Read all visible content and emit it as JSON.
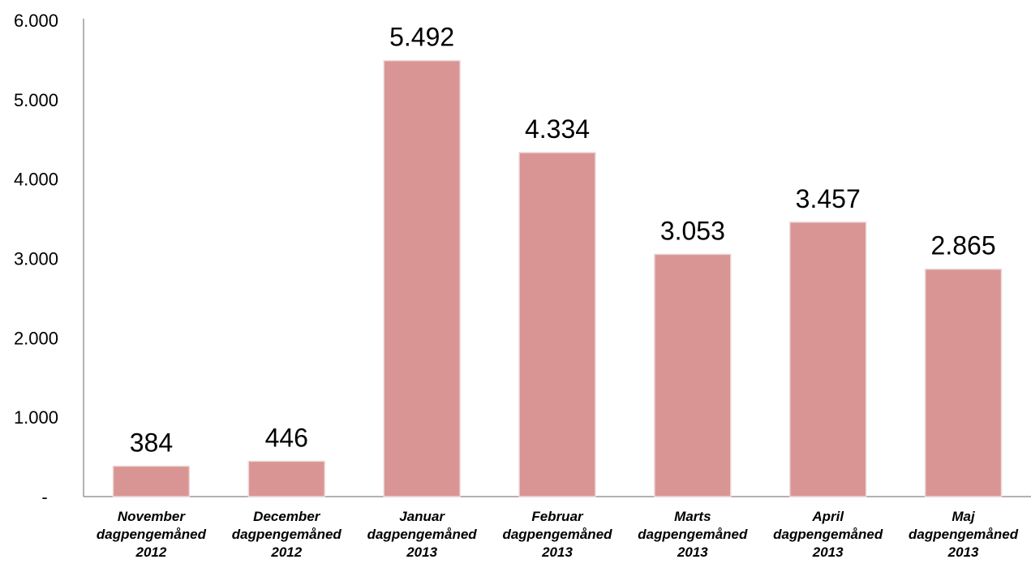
{
  "chart_data": {
    "type": "bar",
    "categories": [
      [
        "November",
        "dagpengemåned",
        "2012"
      ],
      [
        "December",
        "dagpengemåned",
        "2012"
      ],
      [
        "Januar",
        "dagpengemåned",
        "2013"
      ],
      [
        "Februar",
        "dagpengemåned",
        "2013"
      ],
      [
        "Marts",
        "dagpengemåned",
        "2013"
      ],
      [
        "April",
        "dagpengemåned",
        "2013"
      ],
      [
        "Maj",
        "dagpengemåned",
        "2013"
      ]
    ],
    "values": [
      384,
      446,
      5492,
      4334,
      3053,
      3457,
      2865
    ],
    "data_labels": [
      "384",
      "446",
      "5.492",
      "4.334",
      "3.053",
      "3.457",
      "2.865"
    ],
    "yticks": [
      {
        "value": 0,
        "label": "-"
      },
      {
        "value": 1000,
        "label": "1.000"
      },
      {
        "value": 2000,
        "label": "2.000"
      },
      {
        "value": 3000,
        "label": "3.000"
      },
      {
        "value": 4000,
        "label": "4.000"
      },
      {
        "value": 5000,
        "label": "5.000"
      },
      {
        "value": 6000,
        "label": "6.000"
      }
    ],
    "ylim": [
      0,
      6000
    ],
    "grid": false,
    "legend": "none",
    "colors": {
      "bar": "#d99594",
      "bar_edge": "#eedbdb",
      "axis": "#999999"
    }
  }
}
